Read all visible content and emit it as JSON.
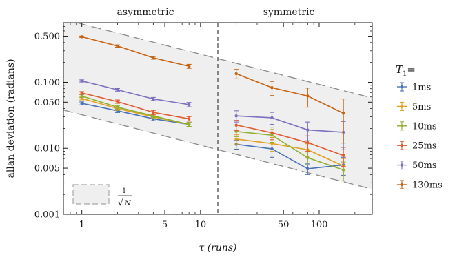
{
  "chart_data": {
    "type": "line",
    "xscale": "log",
    "yscale": "log",
    "xlim": [
      0.7,
      280
    ],
    "ylim": [
      0.001,
      0.8
    ],
    "xlabel": "τ (runs)",
    "ylabel": "allan deviation (radians)",
    "x_ticks": [
      1,
      5,
      10,
      50,
      100
    ],
    "x_tick_labels": [
      "1",
      "5",
      "10",
      "50",
      "100"
    ],
    "y_ticks": [
      0.001,
      0.005,
      0.01,
      0.05,
      0.1,
      0.5
    ],
    "y_tick_labels": [
      "0.001",
      "0.005",
      "0.010",
      "0.050",
      "0.100",
      "0.500"
    ],
    "divider_x": 14,
    "regions": [
      {
        "label": "asymmetric"
      },
      {
        "label": "symmetric"
      }
    ],
    "legend": {
      "title": "T",
      "title_sub": "1",
      "title_suffix": "=",
      "placement": "right"
    },
    "band_legend": {
      "numerator": "1",
      "radical": "N"
    },
    "band": {
      "upper": [
        [
          0.7,
          0.9
        ],
        [
          280,
          0.058
        ]
      ],
      "lower": [
        [
          0.7,
          0.038
        ],
        [
          280,
          0.0024
        ]
      ]
    },
    "series": [
      {
        "name": "1ms",
        "color": "#4a72b8",
        "segments": [
          [
            [
              1,
              0.048,
              0.0025
            ],
            [
              2,
              0.037,
              0.0022
            ],
            [
              4,
              0.028,
              0.0018
            ],
            [
              8,
              0.023,
              0.0016
            ]
          ],
          [
            [
              20,
              0.0115,
              0.0018
            ],
            [
              40,
              0.0098,
              0.0025
            ],
            [
              80,
              0.0049,
              0.0009
            ],
            [
              160,
              0.0056,
              0.0017
            ]
          ]
        ]
      },
      {
        "name": "5ms",
        "color": "#e0a020",
        "segments": [
          [
            [
              1,
              0.057,
              0.0028
            ],
            [
              2,
              0.04,
              0.0024
            ],
            [
              4,
              0.03,
              0.0019
            ],
            [
              8,
              0.023,
              0.0016
            ]
          ],
          [
            [
              20,
              0.0138,
              0.0022
            ],
            [
              40,
              0.0118,
              0.0028
            ],
            [
              80,
              0.0095,
              0.0022
            ],
            [
              160,
              0.0054,
              0.0016
            ]
          ]
        ]
      },
      {
        "name": "10ms",
        "color": "#8fb030",
        "segments": [
          [
            [
              1,
              0.062,
              0.003
            ],
            [
              2,
              0.042,
              0.0025
            ],
            [
              4,
              0.031,
              0.002
            ],
            [
              8,
              0.023,
              0.0016
            ]
          ],
          [
            [
              20,
              0.018,
              0.003
            ],
            [
              40,
              0.0158,
              0.0035
            ],
            [
              80,
              0.0072,
              0.0016
            ],
            [
              160,
              0.0047,
              0.0015
            ]
          ]
        ]
      },
      {
        "name": "25ms",
        "color": "#e05a30",
        "segments": [
          [
            [
              1,
              0.069,
              0.0033
            ],
            [
              2,
              0.051,
              0.003
            ],
            [
              4,
              0.035,
              0.0025
            ],
            [
              8,
              0.028,
              0.0022
            ]
          ],
          [
            [
              20,
              0.0225,
              0.004
            ],
            [
              40,
              0.0172,
              0.0037
            ],
            [
              80,
              0.0122,
              0.0032
            ],
            [
              160,
              0.0078,
              0.0025
            ]
          ]
        ]
      },
      {
        "name": "50ms",
        "color": "#7b6fbf",
        "segments": [
          [
            [
              1,
              0.105,
              0.004
            ],
            [
              2,
              0.077,
              0.0035
            ],
            [
              4,
              0.056,
              0.003
            ],
            [
              8,
              0.046,
              0.0035
            ]
          ],
          [
            [
              20,
              0.031,
              0.006
            ],
            [
              40,
              0.029,
              0.006
            ],
            [
              80,
              0.019,
              0.006
            ],
            [
              160,
              0.0175,
              0.008
            ]
          ]
        ]
      },
      {
        "name": "130ms",
        "color": "#c86414",
        "segments": [
          [
            [
              1,
              0.49,
              0.012
            ],
            [
              2,
              0.355,
              0.014
            ],
            [
              4,
              0.235,
              0.011
            ],
            [
              8,
              0.175,
              0.012
            ]
          ],
          [
            [
              20,
              0.135,
              0.022
            ],
            [
              40,
              0.083,
              0.02
            ],
            [
              80,
              0.062,
              0.02
            ],
            [
              160,
              0.034,
              0.022
            ]
          ]
        ]
      }
    ]
  }
}
